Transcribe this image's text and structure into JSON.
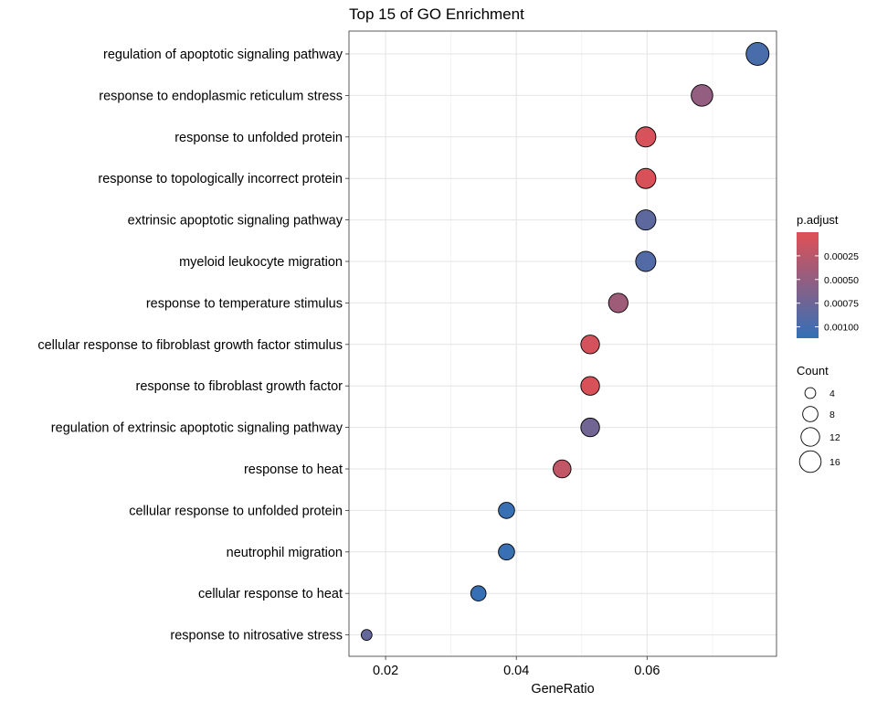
{
  "chart_data": {
    "type": "scatter",
    "title": "Top 15 of GO Enrichment",
    "xlabel": "GeneRatio",
    "ylabel": "",
    "xlim": [
      0.0144,
      0.0798
    ],
    "x_ticks": [
      0.02,
      0.04,
      0.06
    ],
    "x_tick_labels": [
      "0.02",
      "0.04",
      "0.06"
    ],
    "terms": [
      {
        "term": "regulation of apoptotic signaling pathway",
        "gene_ratio": 0.0769,
        "count": 18,
        "p_adjust": 0.00098
      },
      {
        "term": "response to endoplasmic reticulum stress",
        "gene_ratio": 0.0684,
        "count": 16,
        "p_adjust": 0.0005
      },
      {
        "term": "response to unfolded protein",
        "gene_ratio": 0.0598,
        "count": 14,
        "p_adjust": 6e-05
      },
      {
        "term": "response to topologically incorrect protein",
        "gene_ratio": 0.0598,
        "count": 14,
        "p_adjust": 5e-05
      },
      {
        "term": "extrinsic apoptotic signaling pathway",
        "gene_ratio": 0.0598,
        "count": 14,
        "p_adjust": 0.00085
      },
      {
        "term": "myeloid leukocyte migration",
        "gene_ratio": 0.0598,
        "count": 14,
        "p_adjust": 0.00092
      },
      {
        "term": "response to temperature stimulus",
        "gene_ratio": 0.0556,
        "count": 13,
        "p_adjust": 0.00042
      },
      {
        "term": "cellular response to fibroblast growth factor stimulus",
        "gene_ratio": 0.0513,
        "count": 12,
        "p_adjust": 8e-05
      },
      {
        "term": "response to fibroblast growth factor",
        "gene_ratio": 0.0513,
        "count": 12,
        "p_adjust": 5e-05
      },
      {
        "term": "regulation of extrinsic apoptotic signaling pathway",
        "gene_ratio": 0.0513,
        "count": 12,
        "p_adjust": 0.00072
      },
      {
        "term": "response to heat",
        "gene_ratio": 0.047,
        "count": 11,
        "p_adjust": 0.0002
      },
      {
        "term": "cellular response to unfolded protein",
        "gene_ratio": 0.0385,
        "count": 9,
        "p_adjust": 0.00108
      },
      {
        "term": "neutrophil migration",
        "gene_ratio": 0.0385,
        "count": 9,
        "p_adjust": 0.00108
      },
      {
        "term": "cellular response to heat",
        "gene_ratio": 0.0342,
        "count": 8,
        "p_adjust": 0.0011
      },
      {
        "term": "response to nitrosative stress",
        "gene_ratio": 0.0171,
        "count": 4,
        "p_adjust": 0.0008
      }
    ],
    "color_legend": {
      "title": "p.adjust",
      "low_color": "#e05055",
      "high_color": "#3370b6",
      "range": [
        0.0,
        0.00112
      ],
      "ticks": [
        0.00025,
        0.0005,
        0.00075,
        0.001
      ],
      "tick_labels": [
        "0.00025",
        "0.00050",
        "0.00075",
        "0.00100"
      ]
    },
    "size_legend": {
      "title": "Count",
      "values": [
        4,
        8,
        12,
        16
      ],
      "labels": [
        "4",
        "8",
        "12",
        "16"
      ]
    },
    "grid": true,
    "legend_position": "right"
  }
}
